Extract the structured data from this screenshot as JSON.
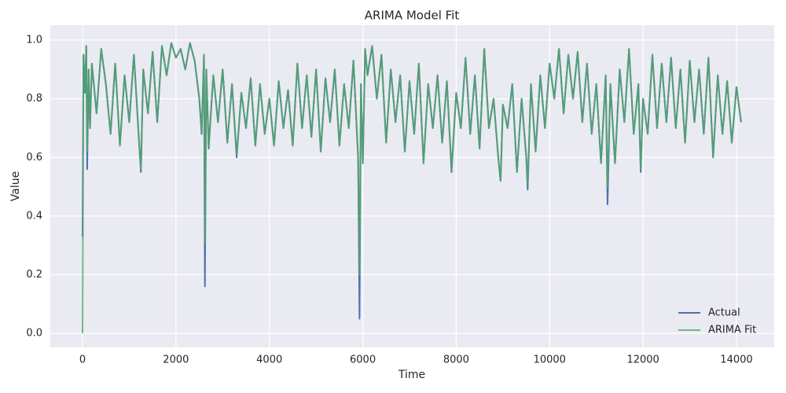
{
  "chart_data": {
    "type": "line",
    "title": "ARIMA Model Fit",
    "x_label": "Time",
    "y_label": "Value",
    "x": [
      0,
      20,
      50,
      80,
      100,
      130,
      160,
      200,
      300,
      400,
      500,
      600,
      700,
      800,
      900,
      1000,
      1100,
      1200,
      1250,
      1300,
      1400,
      1500,
      1600,
      1700,
      1800,
      1900,
      2000,
      2100,
      2200,
      2300,
      2400,
      2500,
      2550,
      2600,
      2620,
      2650,
      2700,
      2800,
      2900,
      3000,
      3100,
      3200,
      3300,
      3400,
      3500,
      3600,
      3700,
      3800,
      3900,
      4000,
      4100,
      4200,
      4300,
      4400,
      4500,
      4600,
      4700,
      4800,
      4900,
      5000,
      5100,
      5200,
      5300,
      5400,
      5500,
      5600,
      5700,
      5800,
      5900,
      5930,
      5960,
      6000,
      6050,
      6100,
      6200,
      6300,
      6400,
      6500,
      6600,
      6700,
      6800,
      6900,
      7000,
      7100,
      7200,
      7300,
      7400,
      7500,
      7600,
      7700,
      7800,
      7900,
      8000,
      8100,
      8200,
      8300,
      8400,
      8500,
      8600,
      8700,
      8800,
      8900,
      8950,
      9000,
      9100,
      9200,
      9300,
      9400,
      9500,
      9530,
      9600,
      9700,
      9800,
      9900,
      10000,
      10100,
      10200,
      10300,
      10400,
      10500,
      10600,
      10700,
      10800,
      10900,
      11000,
      11100,
      11200,
      11240,
      11300,
      11400,
      11500,
      11600,
      11700,
      11800,
      11900,
      11950,
      12000,
      12100,
      12200,
      12300,
      12400,
      12500,
      12600,
      12700,
      12800,
      12900,
      13000,
      13100,
      13200,
      13300,
      13400,
      13500,
      13600,
      13700,
      13800,
      13900,
      14000,
      14100
    ],
    "series": [
      {
        "name": "Actual",
        "color": "#4c72b0",
        "values": [
          0.33,
          0.95,
          0.82,
          0.98,
          0.56,
          0.9,
          0.7,
          0.92,
          0.75,
          0.97,
          0.85,
          0.68,
          0.92,
          0.64,
          0.88,
          0.72,
          0.95,
          0.68,
          0.55,
          0.9,
          0.75,
          0.96,
          0.72,
          0.98,
          0.88,
          0.99,
          0.94,
          0.97,
          0.9,
          0.99,
          0.93,
          0.8,
          0.68,
          0.95,
          0.16,
          0.9,
          0.63,
          0.88,
          0.72,
          0.9,
          0.65,
          0.85,
          0.6,
          0.82,
          0.7,
          0.87,
          0.64,
          0.85,
          0.68,
          0.8,
          0.64,
          0.86,
          0.7,
          0.83,
          0.64,
          0.92,
          0.7,
          0.88,
          0.67,
          0.9,
          0.62,
          0.87,
          0.72,
          0.9,
          0.64,
          0.85,
          0.7,
          0.93,
          0.6,
          0.05,
          0.85,
          0.58,
          0.97,
          0.88,
          0.98,
          0.8,
          0.95,
          0.65,
          0.9,
          0.72,
          0.88,
          0.62,
          0.86,
          0.68,
          0.92,
          0.58,
          0.85,
          0.7,
          0.88,
          0.65,
          0.86,
          0.55,
          0.82,
          0.7,
          0.94,
          0.68,
          0.88,
          0.63,
          0.97,
          0.7,
          0.8,
          0.6,
          0.52,
          0.78,
          0.7,
          0.85,
          0.55,
          0.8,
          0.6,
          0.49,
          0.85,
          0.62,
          0.88,
          0.7,
          0.92,
          0.8,
          0.97,
          0.75,
          0.95,
          0.8,
          0.96,
          0.72,
          0.92,
          0.68,
          0.85,
          0.58,
          0.88,
          0.44,
          0.85,
          0.58,
          0.9,
          0.72,
          0.97,
          0.68,
          0.85,
          0.55,
          0.8,
          0.68,
          0.95,
          0.7,
          0.92,
          0.72,
          0.94,
          0.7,
          0.9,
          0.65,
          0.93,
          0.72,
          0.9,
          0.68,
          0.94,
          0.6,
          0.88,
          0.68,
          0.86,
          0.65,
          0.84,
          0.72
        ]
      },
      {
        "name": "ARIMA Fit",
        "color": "#55a868",
        "values": [
          0.0,
          0.95,
          0.82,
          0.98,
          0.62,
          0.9,
          0.7,
          0.92,
          0.75,
          0.97,
          0.85,
          0.68,
          0.92,
          0.64,
          0.88,
          0.72,
          0.95,
          0.68,
          0.56,
          0.9,
          0.75,
          0.96,
          0.72,
          0.98,
          0.88,
          0.99,
          0.94,
          0.97,
          0.9,
          0.99,
          0.93,
          0.8,
          0.69,
          0.95,
          0.31,
          0.9,
          0.64,
          0.88,
          0.72,
          0.9,
          0.65,
          0.85,
          0.61,
          0.82,
          0.7,
          0.87,
          0.64,
          0.85,
          0.68,
          0.8,
          0.64,
          0.86,
          0.7,
          0.83,
          0.64,
          0.92,
          0.7,
          0.88,
          0.67,
          0.9,
          0.62,
          0.87,
          0.72,
          0.9,
          0.64,
          0.85,
          0.7,
          0.93,
          0.6,
          0.2,
          0.85,
          0.58,
          0.97,
          0.88,
          0.98,
          0.8,
          0.95,
          0.65,
          0.9,
          0.72,
          0.88,
          0.62,
          0.86,
          0.68,
          0.92,
          0.58,
          0.85,
          0.7,
          0.88,
          0.65,
          0.86,
          0.56,
          0.82,
          0.7,
          0.94,
          0.68,
          0.88,
          0.63,
          0.97,
          0.7,
          0.8,
          0.6,
          0.52,
          0.78,
          0.7,
          0.85,
          0.55,
          0.8,
          0.6,
          0.51,
          0.85,
          0.62,
          0.88,
          0.7,
          0.92,
          0.8,
          0.97,
          0.75,
          0.95,
          0.8,
          0.96,
          0.72,
          0.92,
          0.68,
          0.85,
          0.58,
          0.88,
          0.5,
          0.85,
          0.58,
          0.9,
          0.72,
          0.97,
          0.68,
          0.85,
          0.56,
          0.8,
          0.68,
          0.95,
          0.7,
          0.92,
          0.72,
          0.94,
          0.7,
          0.9,
          0.65,
          0.93,
          0.72,
          0.9,
          0.68,
          0.94,
          0.6,
          0.88,
          0.68,
          0.86,
          0.65,
          0.84,
          0.72
        ]
      }
    ],
    "xlim": [
      -690,
      14808
    ],
    "xticks": [
      0,
      2000,
      4000,
      6000,
      8000,
      10000,
      12000,
      14000
    ],
    "ylim": [
      -0.048,
      1.051
    ],
    "yticks": [
      {
        "value": 0,
        "label": "0.0"
      },
      {
        "value": 0.2,
        "label": "0.2"
      },
      {
        "value": 0.4,
        "label": "0.4"
      },
      {
        "value": 0.6,
        "label": "0.6"
      },
      {
        "value": 0.8,
        "label": "0.8"
      },
      {
        "value": 1.0,
        "label": "1.0"
      }
    ],
    "grid": true,
    "legend": "lower right"
  }
}
